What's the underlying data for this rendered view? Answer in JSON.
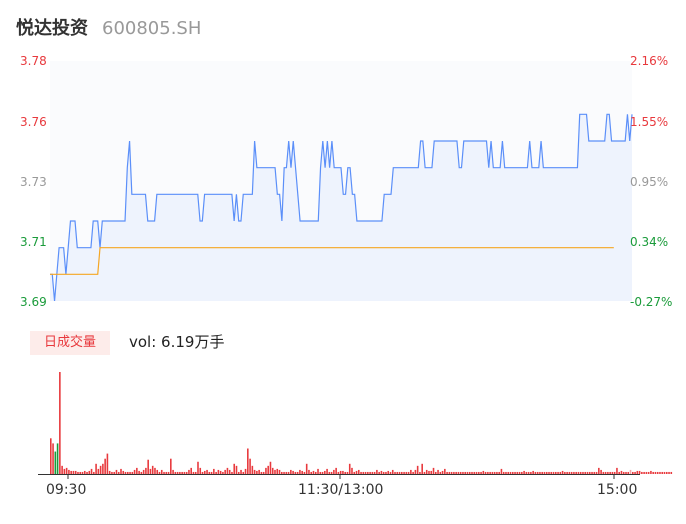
{
  "header": {
    "name": "悦达投资",
    "code": "600805.SH"
  },
  "axes": {
    "price_labels": [
      "3.78",
      "3.76",
      "3.73",
      "3.71",
      "3.69"
    ],
    "pct_labels": [
      "2.16%",
      "1.55%",
      "0.95%",
      "0.34%",
      "-0.27%"
    ],
    "time_labels": [
      "09:30",
      "11:30/13:00",
      "15:00"
    ]
  },
  "volume": {
    "badge": "日成交量",
    "summary": "vol: 6.19万手"
  },
  "colors": {
    "up": "#e8393d",
    "down": "#1a9b3a",
    "neutral": "#999999",
    "price_line": "#5b8ff9",
    "avg_line": "#f5a623"
  },
  "chart_data": {
    "type": "line",
    "x_unit": "minute index of trading session (0 = 09:30, 240 = 15:00)",
    "y_range": [
      3.69,
      3.78
    ],
    "series": [
      {
        "values": [
          3.7,
          3.7,
          3.69,
          3.7,
          3.71,
          3.71,
          3.71,
          3.7,
          3.71,
          3.72,
          3.72,
          3.72,
          3.71,
          3.71,
          3.71,
          3.71,
          3.71,
          3.71,
          3.71,
          3.72,
          3.72,
          3.72,
          3.71,
          3.72,
          3.72,
          3.72,
          3.72,
          3.72,
          3.72,
          3.72,
          3.72,
          3.72,
          3.72,
          3.72,
          3.74,
          3.75,
          3.73,
          3.73,
          3.73,
          3.73,
          3.73,
          3.73,
          3.73,
          3.72,
          3.72,
          3.72,
          3.72,
          3.73,
          3.73,
          3.73,
          3.73,
          3.73,
          3.73,
          3.73,
          3.73,
          3.73,
          3.73,
          3.73,
          3.73,
          3.73,
          3.73,
          3.73,
          3.73,
          3.73,
          3.73,
          3.73,
          3.72,
          3.72,
          3.73,
          3.73,
          3.73,
          3.73,
          3.73,
          3.73,
          3.73,
          3.73,
          3.73,
          3.73,
          3.73,
          3.73,
          3.73,
          3.72,
          3.73,
          3.72,
          3.72,
          3.73,
          3.73,
          3.73,
          3.73,
          3.73,
          3.75,
          3.74,
          3.74,
          3.74,
          3.74,
          3.74,
          3.74,
          3.74,
          3.74,
          3.74,
          3.73,
          3.73,
          3.72,
          3.74,
          3.74,
          3.75,
          3.74,
          3.75,
          3.74,
          3.73,
          3.72,
          3.72,
          3.72,
          3.72,
          3.72,
          3.72,
          3.72,
          3.72,
          3.72,
          3.74,
          3.75,
          3.74,
          3.75,
          3.74,
          3.75,
          3.74,
          3.74,
          3.74,
          3.74,
          3.73,
          3.73,
          3.74,
          3.74,
          3.73,
          3.73,
          3.72,
          3.72,
          3.72,
          3.72,
          3.72,
          3.72,
          3.72,
          3.72,
          3.72,
          3.72,
          3.72,
          3.72,
          3.73,
          3.73,
          3.73,
          3.73,
          3.74,
          3.74,
          3.74,
          3.74,
          3.74,
          3.74,
          3.74,
          3.74,
          3.74,
          3.74,
          3.74,
          3.74,
          3.75,
          3.75,
          3.74,
          3.74,
          3.74,
          3.74,
          3.75,
          3.75,
          3.75,
          3.75,
          3.75,
          3.75,
          3.75,
          3.75,
          3.75,
          3.75,
          3.75,
          3.74,
          3.74,
          3.75,
          3.75,
          3.75,
          3.75,
          3.75,
          3.75,
          3.75,
          3.75,
          3.75,
          3.75,
          3.75,
          3.74,
          3.75,
          3.74,
          3.74,
          3.74,
          3.74,
          3.75,
          3.74,
          3.74,
          3.74,
          3.74,
          3.74,
          3.74,
          3.74,
          3.74,
          3.74,
          3.74,
          3.74,
          3.75,
          3.74,
          3.74,
          3.74,
          3.74,
          3.75,
          3.74,
          3.74,
          3.74,
          3.74,
          3.74,
          3.74,
          3.74,
          3.74,
          3.74,
          3.74,
          3.74,
          3.74,
          3.74,
          3.74,
          3.74,
          3.74,
          3.76,
          3.76,
          3.76,
          3.76,
          3.75,
          3.75,
          3.75,
          3.75,
          3.75,
          3.75,
          3.75,
          3.75,
          3.76,
          3.76,
          3.75,
          3.75,
          3.75,
          3.75,
          3.75,
          3.75,
          3.75,
          3.76,
          3.75,
          3.76
        ]
      },
      {
        "values": [
          3.7,
          3.7,
          3.7,
          3.7,
          3.7,
          3.7,
          3.7,
          3.7,
          3.7,
          3.7,
          3.7,
          3.7,
          3.7,
          3.7,
          3.7,
          3.7,
          3.7,
          3.7,
          3.7,
          3.7,
          3.7,
          3.7,
          3.71,
          3.71,
          3.71,
          3.71,
          3.71,
          3.71,
          3.71,
          3.71,
          3.71,
          3.71,
          3.71,
          3.71,
          3.71,
          3.71,
          3.71,
          3.71,
          3.71,
          3.71,
          3.71,
          3.71,
          3.71,
          3.71,
          3.71,
          3.71,
          3.71,
          3.71,
          3.71,
          3.71,
          3.71,
          3.71,
          3.71,
          3.71,
          3.71,
          3.71,
          3.71,
          3.71,
          3.71,
          3.71,
          3.71,
          3.71,
          3.71,
          3.71,
          3.71,
          3.71,
          3.71,
          3.71,
          3.71,
          3.71,
          3.71,
          3.71,
          3.71,
          3.71,
          3.71,
          3.71,
          3.71,
          3.71,
          3.71,
          3.71,
          3.71,
          3.71,
          3.71,
          3.71,
          3.71,
          3.71,
          3.71,
          3.71,
          3.71,
          3.71,
          3.71,
          3.71,
          3.71,
          3.71,
          3.71,
          3.71,
          3.71,
          3.71,
          3.71,
          3.71,
          3.71,
          3.71,
          3.71,
          3.71,
          3.71,
          3.71,
          3.71,
          3.71,
          3.71,
          3.71,
          3.71,
          3.71,
          3.71,
          3.71,
          3.71,
          3.71,
          3.71,
          3.71,
          3.71,
          3.71,
          3.71,
          3.71,
          3.71,
          3.71,
          3.71,
          3.71,
          3.71,
          3.71,
          3.71,
          3.71,
          3.71,
          3.71,
          3.71,
          3.71,
          3.71,
          3.71,
          3.71,
          3.71,
          3.71,
          3.71,
          3.71,
          3.71,
          3.71,
          3.71,
          3.71,
          3.71,
          3.71,
          3.71,
          3.71,
          3.71,
          3.71,
          3.71,
          3.71,
          3.71,
          3.71,
          3.71,
          3.71,
          3.71,
          3.71,
          3.71,
          3.71,
          3.71,
          3.71,
          3.71,
          3.71,
          3.71,
          3.71,
          3.71,
          3.71,
          3.71,
          3.71,
          3.71,
          3.71,
          3.71,
          3.71,
          3.71,
          3.71,
          3.71,
          3.71,
          3.71,
          3.71,
          3.71,
          3.71,
          3.71,
          3.71,
          3.71,
          3.71,
          3.71,
          3.71,
          3.71,
          3.71,
          3.71,
          3.71,
          3.71,
          3.71,
          3.71,
          3.71,
          3.71,
          3.71,
          3.71,
          3.71,
          3.71,
          3.71,
          3.71,
          3.71,
          3.71,
          3.71,
          3.71,
          3.71,
          3.71,
          3.71,
          3.71,
          3.71,
          3.71,
          3.71,
          3.71,
          3.71,
          3.71,
          3.71,
          3.71,
          3.71,
          3.71,
          3.71,
          3.71,
          3.71,
          3.71,
          3.71,
          3.71,
          3.71,
          3.71,
          3.71,
          3.71,
          3.71,
          3.71,
          3.71,
          3.71,
          3.71,
          3.71,
          3.71,
          3.71,
          3.71,
          3.71,
          3.71,
          3.71,
          3.71,
          3.71,
          3.71,
          3.71,
          3.71
        ]
      }
    ],
    "volume_scale_max": 100,
    "volume": [
      35,
      30,
      22,
      30,
      100,
      8,
      5,
      6,
      4,
      3,
      3,
      3,
      2,
      2,
      2,
      3,
      2,
      3,
      5,
      2,
      10,
      5,
      8,
      10,
      15,
      20,
      3,
      2,
      2,
      4,
      2,
      5,
      3,
      2,
      2,
      2,
      2,
      4,
      6,
      3,
      2,
      4,
      6,
      14,
      5,
      8,
      6,
      4,
      2,
      4,
      2,
      2,
      2,
      15,
      4,
      2,
      2,
      2,
      2,
      2,
      2,
      4,
      6,
      2,
      2,
      12,
      6,
      2,
      3,
      4,
      2,
      2,
      5,
      2,
      4,
      3,
      2,
      4,
      6,
      4,
      2,
      10,
      8,
      2,
      4,
      2,
      5,
      25,
      15,
      8,
      4,
      3,
      4,
      2,
      2,
      6,
      8,
      12,
      6,
      4,
      5,
      4,
      2,
      2,
      2,
      2,
      4,
      3,
      2,
      2,
      4,
      3,
      2,
      10,
      4,
      2,
      3,
      2,
      5,
      2,
      2,
      3,
      5,
      2,
      2,
      4,
      6,
      2,
      3,
      3,
      2,
      2,
      10,
      6,
      2,
      3,
      4,
      2,
      2,
      2,
      2,
      2,
      2,
      2,
      4,
      2,
      3,
      2,
      2,
      3,
      2,
      4,
      2,
      2,
      2,
      2,
      2,
      2,
      2,
      4,
      2,
      4,
      8,
      2,
      10,
      2,
      4,
      3,
      3,
      6,
      2,
      4,
      2,
      3,
      5,
      2,
      2,
      2,
      2,
      2,
      2,
      2,
      2,
      2,
      2,
      2,
      2,
      2,
      2,
      2,
      2,
      3,
      2,
      2,
      2,
      2,
      2,
      2,
      2,
      5,
      2,
      2,
      2,
      2,
      2,
      2,
      2,
      2,
      2,
      3,
      2,
      2,
      2,
      3,
      2,
      2,
      2,
      2,
      2,
      2,
      2,
      2,
      2,
      2,
      2,
      2,
      3,
      2,
      2,
      2,
      2,
      2,
      2,
      2,
      2,
      2,
      2,
      2,
      2,
      2,
      2,
      2,
      6,
      4,
      2,
      2,
      2,
      2,
      2,
      2,
      6,
      2,
      3,
      2,
      2,
      2,
      4,
      2,
      2,
      3,
      3,
      2,
      2,
      2,
      2,
      3,
      2,
      2,
      2,
      2,
      2,
      2,
      2,
      2,
      2
    ],
    "volume_dir": [
      1,
      1,
      -1,
      -1,
      1,
      1,
      1,
      1,
      1,
      1,
      1,
      1,
      1,
      1,
      1,
      1,
      1,
      1,
      1,
      1,
      1,
      1,
      1,
      1,
      1,
      1,
      1,
      1,
      1,
      1,
      1,
      1,
      1,
      1,
      1,
      1,
      1,
      1,
      1,
      1,
      1,
      1,
      1,
      1,
      1,
      1,
      1,
      1,
      1,
      1,
      1,
      1,
      1,
      1,
      1,
      1,
      1,
      1,
      1,
      1,
      1,
      1,
      1,
      1,
      1,
      1,
      1,
      1,
      1,
      1,
      1,
      1,
      1,
      1,
      1,
      1,
      1,
      1,
      1,
      1,
      1,
      1,
      1,
      1,
      1,
      1,
      1,
      1,
      1,
      1,
      1,
      1,
      1,
      1,
      1,
      1,
      1,
      1,
      1,
      1,
      1,
      1,
      1,
      1,
      1,
      1,
      1,
      1,
      1,
      1,
      1,
      1,
      1,
      1,
      1,
      1,
      1,
      1,
      1,
      1,
      1,
      1,
      1,
      1,
      1,
      1,
      1,
      1,
      1,
      1,
      1,
      1,
      1,
      1,
      1,
      1,
      1,
      1,
      1,
      1,
      1,
      1,
      1,
      1,
      1,
      1,
      1,
      1,
      1,
      1,
      1,
      1,
      1,
      1,
      1,
      1,
      1,
      1,
      1,
      1,
      1,
      1,
      1,
      1,
      1,
      1,
      1,
      1,
      1,
      1,
      1,
      1,
      1,
      1,
      1,
      1,
      1,
      1,
      1,
      1,
      1,
      1,
      1,
      1,
      1,
      1,
      1,
      1,
      1,
      1,
      1,
      1,
      1,
      1,
      1,
      1,
      1,
      1,
      1,
      1,
      1,
      1,
      1,
      1,
      1,
      1,
      1,
      1,
      1,
      1,
      1,
      1,
      1,
      1,
      1,
      1,
      1,
      1,
      1,
      1,
      1,
      1,
      1,
      1,
      1,
      1,
      1,
      1,
      1,
      1,
      1,
      1,
      1,
      1,
      1,
      1,
      1,
      1,
      1,
      1,
      1,
      1,
      1,
      1,
      1,
      1,
      1,
      1,
      1,
      1,
      1,
      1,
      1,
      1,
      1,
      1,
      1,
      1,
      1,
      1,
      1,
      1,
      1,
      1,
      1,
      1,
      1,
      1,
      1
    ]
  }
}
